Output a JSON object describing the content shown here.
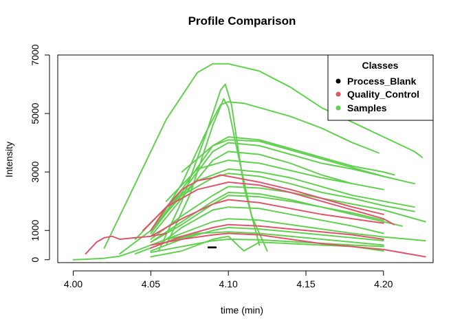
{
  "chart_data": {
    "type": "line",
    "title": "Profile Comparison",
    "xlabel": "time (min)",
    "ylabel": "Intensity",
    "xlim": [
      3.99,
      4.232
    ],
    "ylim": [
      -100,
      7000
    ],
    "x_ticks": [
      "4.00",
      "4.05",
      "4.10",
      "4.15",
      "4.20"
    ],
    "x_tick_values": [
      4.0,
      4.05,
      4.1,
      4.15,
      4.2
    ],
    "y_ticks": [
      "0",
      "1000",
      "3000",
      "5000",
      "7000"
    ],
    "y_tick_values": [
      0,
      1000,
      3000,
      5000,
      7000
    ],
    "legend": {
      "title": "Classes",
      "position": "top-right",
      "entries": [
        {
          "label": "Process_Blank",
          "color": "#000000"
        },
        {
          "label": "Quality_Control",
          "color": "#DF536B"
        },
        {
          "label": "Samples",
          "color": "#61D04F"
        }
      ]
    },
    "series": [
      {
        "class": "Process_Blank",
        "color": "#000000",
        "x": [
          4.087,
          4.092
        ],
        "y": [
          430,
          430
        ]
      },
      {
        "class": "Process_Blank",
        "color": "#000000",
        "x": [
          4.087,
          4.092
        ],
        "y": [
          410,
          410
        ]
      },
      {
        "class": "Quality_Control",
        "color": "#DF536B",
        "x": [
          4.008,
          4.015,
          4.02,
          4.025,
          4.03,
          4.04,
          4.05,
          4.06
        ],
        "y": [
          200,
          600,
          750,
          800,
          700,
          750,
          800,
          900
        ]
      },
      {
        "class": "Quality_Control",
        "color": "#DF536B",
        "x": [
          4.05,
          4.06,
          4.07,
          4.08,
          4.09,
          4.095,
          4.1,
          4.12,
          4.14,
          4.16,
          4.18,
          4.2
        ],
        "y": [
          1000,
          1800,
          2400,
          2700,
          2800,
          2900,
          2850,
          2650,
          2400,
          2100,
          1800,
          1550
        ]
      },
      {
        "class": "Quality_Control",
        "color": "#DF536B",
        "x": [
          4.045,
          4.06,
          4.08,
          4.1,
          4.12,
          4.14,
          4.16,
          4.18,
          4.2,
          4.207
        ],
        "y": [
          1000,
          1800,
          2400,
          2650,
          2550,
          2300,
          2000,
          1700,
          1400,
          1200
        ]
      },
      {
        "class": "Quality_Control",
        "color": "#DF536B",
        "x": [
          4.05,
          4.07,
          4.09,
          4.1,
          4.12,
          4.14,
          4.16,
          4.18,
          4.2
        ],
        "y": [
          800,
          1400,
          1900,
          2050,
          1950,
          1750,
          1550,
          1400,
          1250
        ]
      },
      {
        "class": "Quality_Control",
        "color": "#DF536B",
        "x": [
          4.05,
          4.07,
          4.09,
          4.1,
          4.12,
          4.14,
          4.16,
          4.18,
          4.2,
          4.227
        ],
        "y": [
          500,
          700,
          850,
          900,
          850,
          700,
          550,
          450,
          350,
          100
        ]
      },
      {
        "class": "Quality_Control",
        "color": "#DF536B",
        "x": [
          4.05,
          4.07,
          4.09,
          4.1,
          4.12,
          4.14,
          4.16,
          4.18,
          4.2
        ],
        "y": [
          400,
          800,
          1100,
          1200,
          1150,
          1050,
          950,
          850,
          700
        ]
      },
      {
        "class": "Samples",
        "color": "#61D04F",
        "x": [
          4.02,
          4.04,
          4.06,
          4.08,
          4.09,
          4.1,
          4.12,
          4.14,
          4.16,
          4.18,
          4.2,
          4.22,
          4.225
        ],
        "y": [
          400,
          2600,
          4800,
          6400,
          6700,
          6700,
          6450,
          5900,
          5200,
          4700,
          4200,
          3700,
          3500
        ]
      },
      {
        "class": "Samples",
        "color": "#61D04F",
        "x": [
          4.05,
          4.07,
          4.085,
          4.095,
          4.1,
          4.11,
          4.12,
          4.14,
          4.16,
          4.18,
          4.197
        ],
        "y": [
          900,
          2600,
          4300,
          5300,
          5400,
          5350,
          5200,
          4900,
          4500,
          4000,
          3650
        ]
      },
      {
        "class": "Samples",
        "color": "#61D04F",
        "x": [
          4.055,
          4.07,
          4.085,
          4.095,
          4.098,
          4.102,
          4.11,
          4.12
        ],
        "y": [
          300,
          2000,
          4200,
          5800,
          6000,
          5300,
          2500,
          500
        ]
      },
      {
        "class": "Samples",
        "color": "#61D04F",
        "x": [
          4.06,
          4.075,
          4.09,
          4.097,
          4.1,
          4.105,
          4.115,
          4.125
        ],
        "y": [
          500,
          2200,
          4600,
          5500,
          5200,
          3900,
          1500,
          300
        ]
      },
      {
        "class": "Samples",
        "color": "#61D04F",
        "x": [
          4.05,
          4.07,
          4.09,
          4.1,
          4.12,
          4.14,
          4.16,
          4.18,
          4.2,
          4.207
        ],
        "y": [
          900,
          2400,
          3900,
          4200,
          4100,
          3800,
          3500,
          3200,
          3000,
          2900
        ]
      },
      {
        "class": "Samples",
        "color": "#61D04F",
        "x": [
          4.05,
          4.07,
          4.09,
          4.1,
          4.12,
          4.14,
          4.16,
          4.18,
          4.2
        ],
        "y": [
          900,
          2300,
          3700,
          4000,
          3900,
          3600,
          3300,
          3100,
          2850
        ]
      },
      {
        "class": "Samples",
        "color": "#61D04F",
        "x": [
          4.05,
          4.07,
          4.09,
          4.1,
          4.12,
          4.14,
          4.16,
          4.18,
          4.2
        ],
        "y": [
          800,
          2100,
          3400,
          3700,
          3600,
          3300,
          2900,
          2600,
          2400
        ]
      },
      {
        "class": "Samples",
        "color": "#61D04F",
        "x": [
          4.04,
          4.06,
          4.08,
          4.1,
          4.12,
          4.14,
          4.16,
          4.18,
          4.2,
          4.22
        ],
        "y": [
          700,
          1800,
          2700,
          3100,
          3000,
          2800,
          2500,
          2200,
          2000,
          1800
        ]
      },
      {
        "class": "Samples",
        "color": "#61D04F",
        "x": [
          4.05,
          4.07,
          4.09,
          4.1,
          4.12,
          4.14,
          4.16,
          4.18,
          4.2,
          4.227
        ],
        "y": [
          700,
          1500,
          2200,
          2500,
          2450,
          2300,
          2100,
          1900,
          1700,
          1300
        ]
      },
      {
        "class": "Samples",
        "color": "#61D04F",
        "x": [
          4.05,
          4.07,
          4.09,
          4.1,
          4.12,
          4.14,
          4.16,
          4.18,
          4.2
        ],
        "y": [
          600,
          1200,
          1900,
          2200,
          2150,
          2000,
          1800,
          1600,
          1350
        ]
      },
      {
        "class": "Samples",
        "color": "#61D04F",
        "x": [
          4.055,
          4.07,
          4.09,
          4.1,
          4.12,
          4.14,
          4.16,
          4.18,
          4.2
        ],
        "y": [
          500,
          1100,
          1700,
          1800,
          1750,
          1550,
          1350,
          1150,
          900
        ]
      },
      {
        "class": "Samples",
        "color": "#61D04F",
        "x": [
          4.05,
          4.07,
          4.09,
          4.1,
          4.12,
          4.14,
          4.16,
          4.18,
          4.2,
          4.227
        ],
        "y": [
          500,
          900,
          1300,
          1400,
          1350,
          1200,
          1050,
          900,
          780,
          650
        ]
      },
      {
        "class": "Samples",
        "color": "#61D04F",
        "x": [
          4.05,
          4.07,
          4.09,
          4.1,
          4.12,
          4.14,
          4.16,
          4.18,
          4.2
        ],
        "y": [
          300,
          700,
          1000,
          1100,
          1050,
          950,
          850,
          750,
          650
        ]
      },
      {
        "class": "Samples",
        "color": "#61D04F",
        "x": [
          4.05,
          4.07,
          4.09,
          4.1,
          4.12,
          4.14,
          4.16,
          4.18,
          4.2
        ],
        "y": [
          250,
          450,
          650,
          700,
          680,
          620,
          560,
          500,
          450
        ]
      },
      {
        "class": "Samples",
        "color": "#61D04F",
        "x": [
          4.0,
          4.01,
          4.02,
          4.03,
          4.04,
          4.05,
          4.06,
          4.07,
          4.08
        ],
        "y": [
          0,
          20,
          50,
          120,
          300,
          500,
          700,
          800,
          850
        ]
      },
      {
        "class": "Samples",
        "color": "#61D04F",
        "x": [
          4.03,
          4.05,
          4.07,
          4.09,
          4.1,
          4.12,
          4.14,
          4.16,
          4.18,
          4.2,
          4.22
        ],
        "y": [
          200,
          1000,
          2200,
          2800,
          2950,
          2850,
          2600,
          2300,
          2100,
          1850,
          1650
        ]
      },
      {
        "class": "Samples",
        "color": "#61D04F",
        "x": [
          4.07,
          4.09,
          4.1,
          4.12,
          4.14,
          4.16,
          4.18,
          4.2,
          4.22
        ],
        "y": [
          3000,
          3900,
          4100,
          4050,
          3750,
          3450,
          3150,
          2850,
          2600
        ]
      },
      {
        "class": "Samples",
        "color": "#61D04F",
        "x": [
          4.06,
          4.08,
          4.1,
          4.12,
          4.14,
          4.16,
          4.18
        ],
        "y": [
          2000,
          3100,
          3400,
          3300,
          3050,
          2800,
          2600
        ]
      },
      {
        "class": "Samples",
        "color": "#61D04F",
        "x": [
          4.05,
          4.07,
          4.09,
          4.1,
          4.12,
          4.14,
          4.16,
          4.18,
          4.2,
          4.212
        ],
        "y": [
          600,
          1300,
          2000,
          2300,
          2250,
          2050,
          1800,
          1550,
          1300,
          1150
        ]
      },
      {
        "class": "Samples",
        "color": "#61D04F",
        "x": [
          4.04,
          4.06,
          4.08,
          4.1,
          4.12,
          4.14,
          4.16,
          4.18,
          4.2
        ],
        "y": [
          200,
          600,
          900,
          950,
          900,
          800,
          700,
          600,
          500
        ]
      },
      {
        "class": "Samples",
        "color": "#61D04F",
        "x": [
          4.05,
          4.07,
          4.09,
          4.1,
          4.11,
          4.12,
          4.14,
          4.16,
          4.18,
          4.2
        ],
        "y": [
          100,
          300,
          700,
          800,
          300,
          600,
          550,
          500,
          450,
          300
        ]
      }
    ]
  }
}
